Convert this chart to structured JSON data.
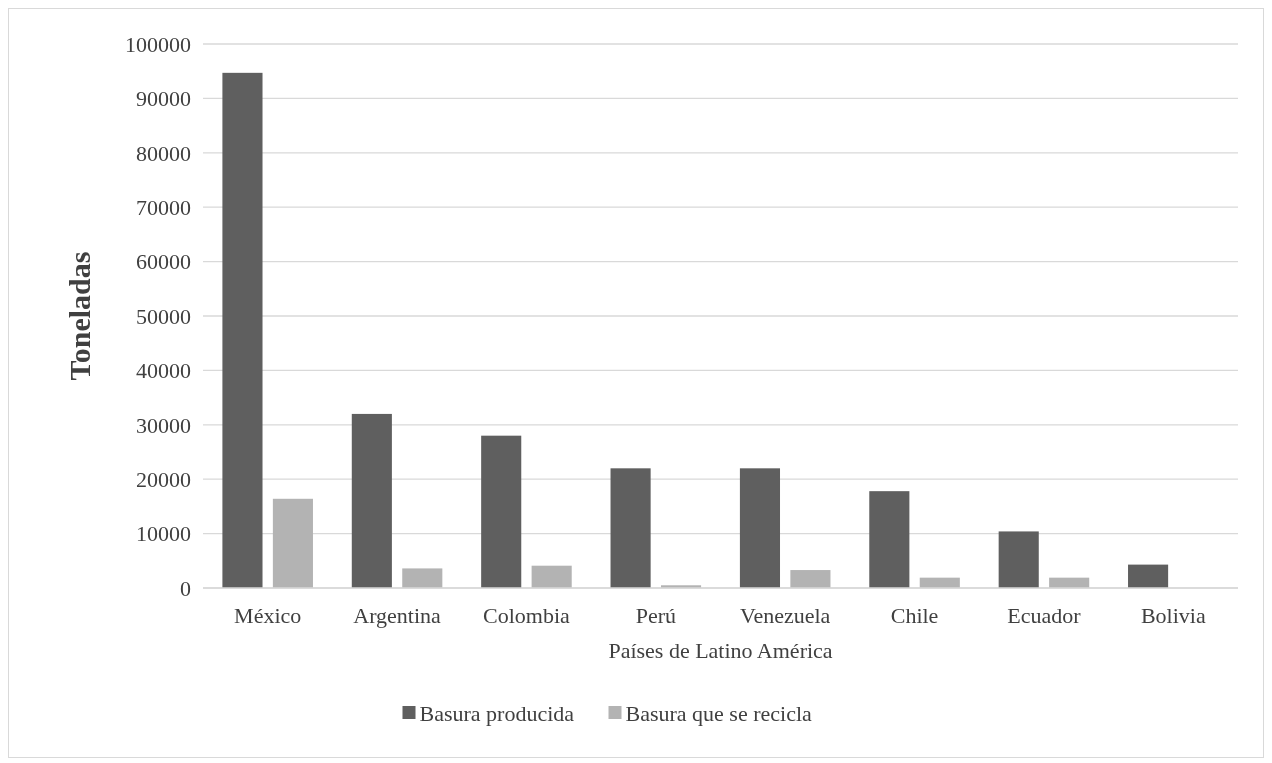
{
  "chart_data": {
    "type": "bar",
    "xlabel": "Países de Latino América",
    "ylabel": "Toneladas",
    "categories": [
      "México",
      "Argentina",
      "Colombia",
      "Perú",
      "Venezuela",
      "Chile",
      "Ecuador",
      "Bolivia"
    ],
    "series": [
      {
        "name": "Basura producida",
        "color": "#5f5f5f",
        "values": [
          94700,
          32000,
          28000,
          22000,
          22000,
          17800,
          10400,
          4300
        ]
      },
      {
        "name": "Basura que se recicla",
        "color": "#b3b3b3",
        "values": [
          16400,
          3600,
          4100,
          500,
          3300,
          1900,
          1900,
          0
        ]
      }
    ],
    "ylim": [
      0,
      100000
    ],
    "yticks": [
      0,
      10000,
      20000,
      30000,
      40000,
      50000,
      60000,
      70000,
      80000,
      90000,
      100000
    ],
    "grid": "y",
    "legend": "bottom"
  }
}
